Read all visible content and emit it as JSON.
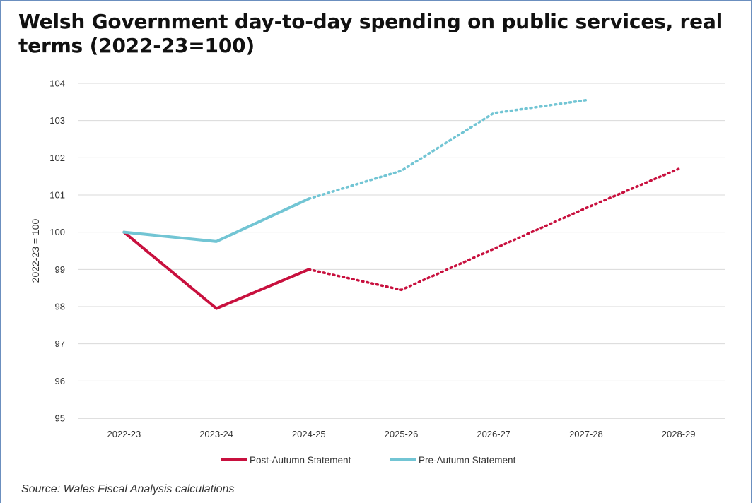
{
  "title": "Welsh Government day-to-day spending on public services, real terms (2022-23=100)",
  "source": "Source: Wales Fiscal Analysis calculations",
  "chart_data": {
    "type": "line",
    "title": "Welsh Government day-to-day spending on public services, real terms (2022-23=100)",
    "xlabel": "",
    "ylabel": "2022-23 = 100",
    "categories": [
      "2022-23",
      "2023-24",
      "2024-25",
      "2025-26",
      "2026-27",
      "2027-28",
      "2028-29"
    ],
    "ylim": [
      95,
      104
    ],
    "yticks": [
      95,
      96,
      97,
      98,
      99,
      100,
      101,
      102,
      103,
      104
    ],
    "grid": true,
    "legend_position": "bottom",
    "series": [
      {
        "name": "Post-Autumn Statement",
        "color": "#c8103e",
        "values": [
          100.0,
          97.95,
          99.0,
          98.45,
          99.55,
          100.65,
          101.7
        ],
        "solid_until_index": 2
      },
      {
        "name": "Pre-Autumn Statement",
        "color": "#72c5d4",
        "values": [
          100.0,
          99.75,
          100.9,
          101.65,
          103.2,
          103.55,
          null
        ],
        "solid_until_index": 2
      }
    ]
  }
}
